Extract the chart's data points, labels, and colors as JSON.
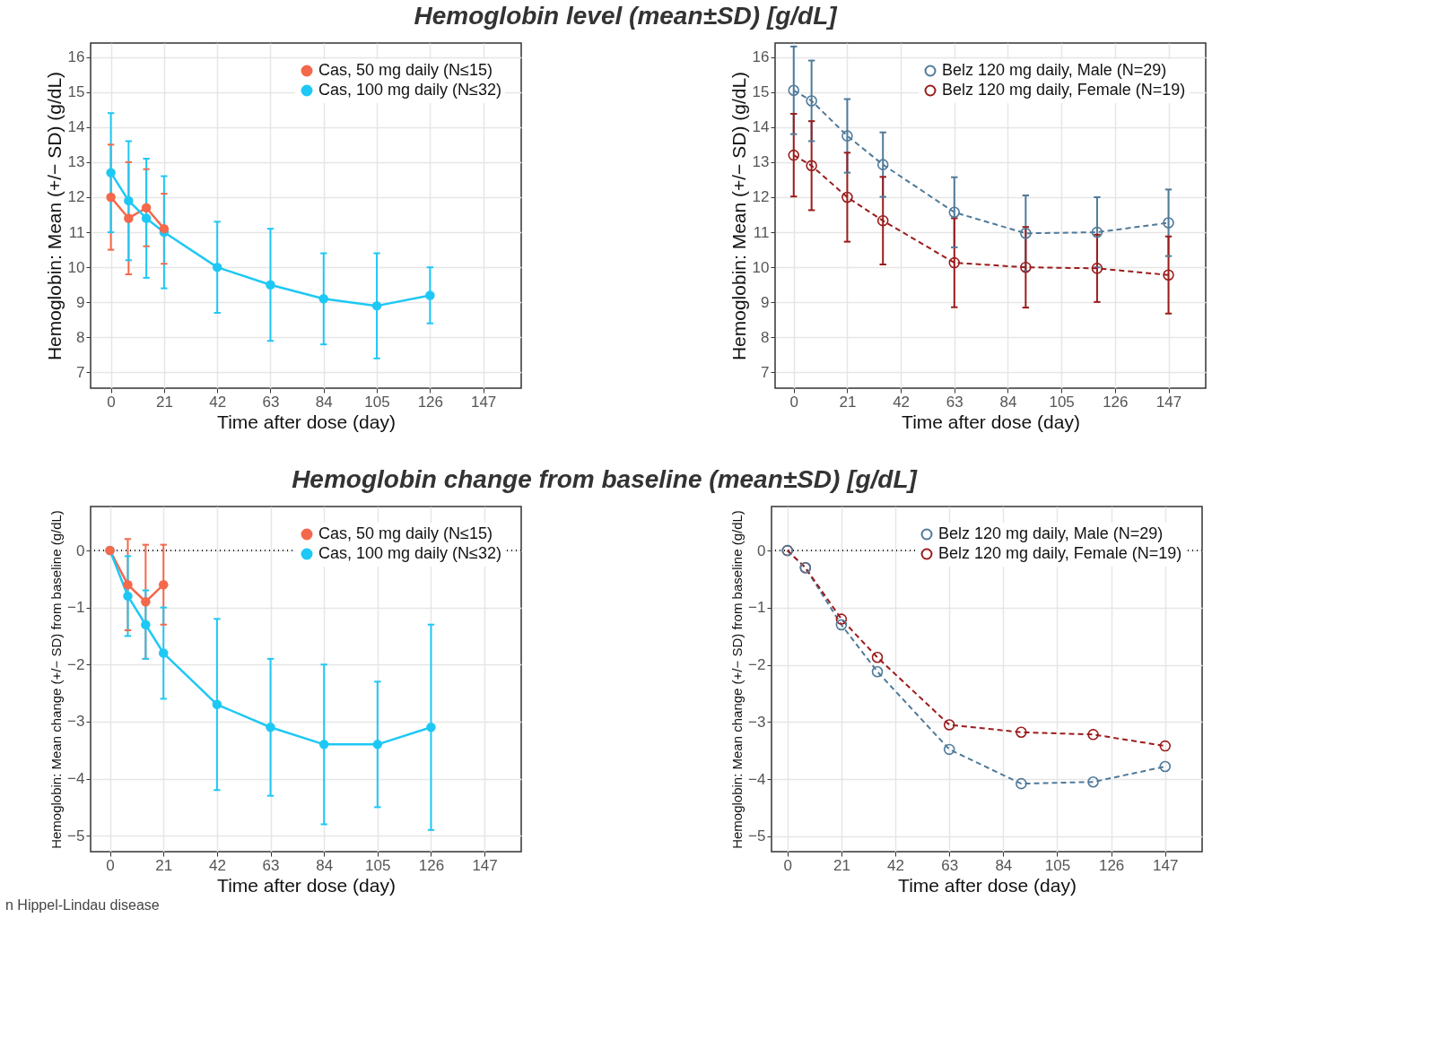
{
  "chart_data": [
    {
      "type": "line",
      "title": "Hemoglobin level (mean±SD) [g/dL]",
      "xlabel": "Time after dose (day)",
      "ylabel": "Hemoglobin: Mean (+/− SD) (g/dL)",
      "xlim": [
        -8,
        162
      ],
      "ylim": [
        6.55,
        16.4
      ],
      "xticks": [
        0,
        21,
        42,
        63,
        84,
        105,
        126,
        147
      ],
      "yticks": [
        7,
        8,
        9,
        10,
        11,
        12,
        13,
        14,
        15,
        16
      ],
      "grid": true,
      "legend": "top right",
      "marker": "circle",
      "line_style": "solid",
      "series": [
        {
          "name": "Cas, 50 mg daily (N≤15)",
          "color": "#f4684b",
          "x": [
            0,
            7,
            14,
            21
          ],
          "values": [
            12.0,
            11.4,
            11.7,
            11.1
          ],
          "errors": [
            1.5,
            1.6,
            1.1,
            1.0
          ]
        },
        {
          "name": "Cas, 100 mg daily (N≤32)",
          "color": "#1ec8f5",
          "x": [
            0,
            7,
            14,
            21,
            42,
            63,
            84,
            105,
            126
          ],
          "values": [
            12.7,
            11.9,
            11.4,
            11.0,
            10.0,
            9.5,
            9.1,
            8.9,
            9.2
          ],
          "errors": [
            1.7,
            1.7,
            1.7,
            1.6,
            1.3,
            1.6,
            1.3,
            1.5,
            0.8
          ]
        }
      ]
    },
    {
      "type": "line",
      "xlabel": "Time after dose (day)",
      "ylabel": "Hemoglobin: Mean (+/− SD) (g/dL)",
      "xlim": [
        -7.3,
        161.6
      ],
      "ylim": [
        6.55,
        16.4
      ],
      "xticks": [
        0,
        21,
        42,
        63,
        84,
        105,
        126,
        147
      ],
      "yticks": [
        7,
        8,
        9,
        10,
        11,
        12,
        13,
        14,
        15,
        16
      ],
      "grid": true,
      "legend": "top right",
      "marker": "circle",
      "line_style": "dashed",
      "series": [
        {
          "name": "Belz 120 mg daily, Male (N=29)",
          "color": "#4f7a9a",
          "x": [
            0,
            7,
            21,
            35,
            63,
            91,
            119,
            147
          ],
          "values": [
            15.05,
            14.75,
            13.75,
            12.93,
            11.57,
            10.97,
            11.0,
            11.27
          ],
          "errors": [
            1.25,
            1.15,
            1.05,
            0.92,
            1.0,
            1.08,
            1.0,
            0.95
          ]
        },
        {
          "name": "Belz 120 mg daily, Female (N=19)",
          "color": "#9b1c1c",
          "x": [
            0,
            7,
            21,
            35,
            63,
            91,
            119,
            147
          ],
          "values": [
            13.2,
            12.9,
            12.0,
            11.33,
            10.13,
            10.0,
            9.97,
            9.78
          ],
          "errors": [
            1.18,
            1.27,
            1.27,
            1.25,
            1.27,
            1.15,
            0.96,
            1.1
          ]
        }
      ]
    },
    {
      "type": "line",
      "title": "Hemoglobin change from baseline (mean±SD) [g/dL]",
      "xlabel": "Time after dose (day)",
      "ylabel": "Hemoglobin: Mean change (+/− SD) from baseline (g/dL)",
      "xlim": [
        -7.6,
        161.4
      ],
      "ylim": [
        -5.28,
        0.77
      ],
      "xticks": [
        0,
        21,
        42,
        63,
        84,
        105,
        126,
        147
      ],
      "yticks": [
        {
          "value": 0,
          "label": "0"
        },
        {
          "value": -1,
          "label": "−1"
        },
        {
          "value": -2,
          "label": "−2"
        },
        {
          "value": -3,
          "label": "−3"
        },
        {
          "value": -4,
          "label": "−4"
        },
        {
          "value": -5,
          "label": "−5"
        }
      ],
      "grid": true,
      "legend": "top right",
      "marker": "circle",
      "line_style": "solid",
      "ref_lines": [
        {
          "axis": "y",
          "value": 0,
          "color": "#222222",
          "line_style": "dotted"
        }
      ],
      "annotations": [
        "n Hippel-Lindau disease"
      ],
      "series": [
        {
          "name": "Cas, 50 mg daily (N≤15)",
          "color": "#f4684b",
          "x": [
            0,
            7,
            14,
            21
          ],
          "values": [
            0,
            -0.6,
            -0.9,
            -0.6
          ],
          "errors": [
            null,
            0.8,
            1.0,
            0.7
          ]
        },
        {
          "name": "Cas, 100 mg daily (N≤32)",
          "color": "#1ec8f5",
          "x": [
            0,
            7,
            14,
            21,
            42,
            63,
            84,
            105,
            126
          ],
          "values": [
            0,
            -0.8,
            -1.3,
            -1.8,
            -2.7,
            -3.1,
            -3.4,
            -3.4,
            -3.1
          ],
          "errors": [
            null,
            0.7,
            0.6,
            0.8,
            1.5,
            1.2,
            1.4,
            1.1,
            1.8
          ]
        }
      ]
    },
    {
      "type": "line",
      "xlabel": "Time after dose (day)",
      "ylabel": "Hemoglobin: Mean change (+/− SD) from baseline (g/dL)",
      "xlim": [
        -6.2,
        161.4
      ],
      "ylim": [
        -5.27,
        0.77
      ],
      "xticks": [
        0,
        21,
        42,
        63,
        84,
        105,
        126,
        147
      ],
      "yticks": [
        {
          "value": 0,
          "label": "0"
        },
        {
          "value": -1,
          "label": "−1"
        },
        {
          "value": -2,
          "label": "−2"
        },
        {
          "value": -3,
          "label": "−3"
        },
        {
          "value": -4,
          "label": "−4"
        },
        {
          "value": -5,
          "label": "−5"
        }
      ],
      "grid": true,
      "legend": "top right",
      "marker": "circle",
      "line_style": "dashed",
      "ref_lines": [
        {
          "axis": "y",
          "value": 0,
          "color": "#222222",
          "line_style": "dotted"
        }
      ],
      "series": [
        {
          "name": "Belz 120 mg daily, Male (N=29)",
          "color": "#4f7a9a",
          "x": [
            0,
            7,
            21,
            35,
            63,
            91,
            119,
            147
          ],
          "values": [
            0,
            -0.3,
            -1.3,
            -2.12,
            -3.48,
            -4.08,
            -4.05,
            -3.78
          ]
        },
        {
          "name": "Belz 120 mg daily, Female (N=19)",
          "color": "#9b1c1c",
          "x": [
            0,
            7,
            21,
            35,
            63,
            91,
            119,
            147
          ],
          "values": [
            0,
            -0.3,
            -1.2,
            -1.87,
            -3.05,
            -3.18,
            -3.22,
            -3.42
          ]
        }
      ]
    }
  ]
}
